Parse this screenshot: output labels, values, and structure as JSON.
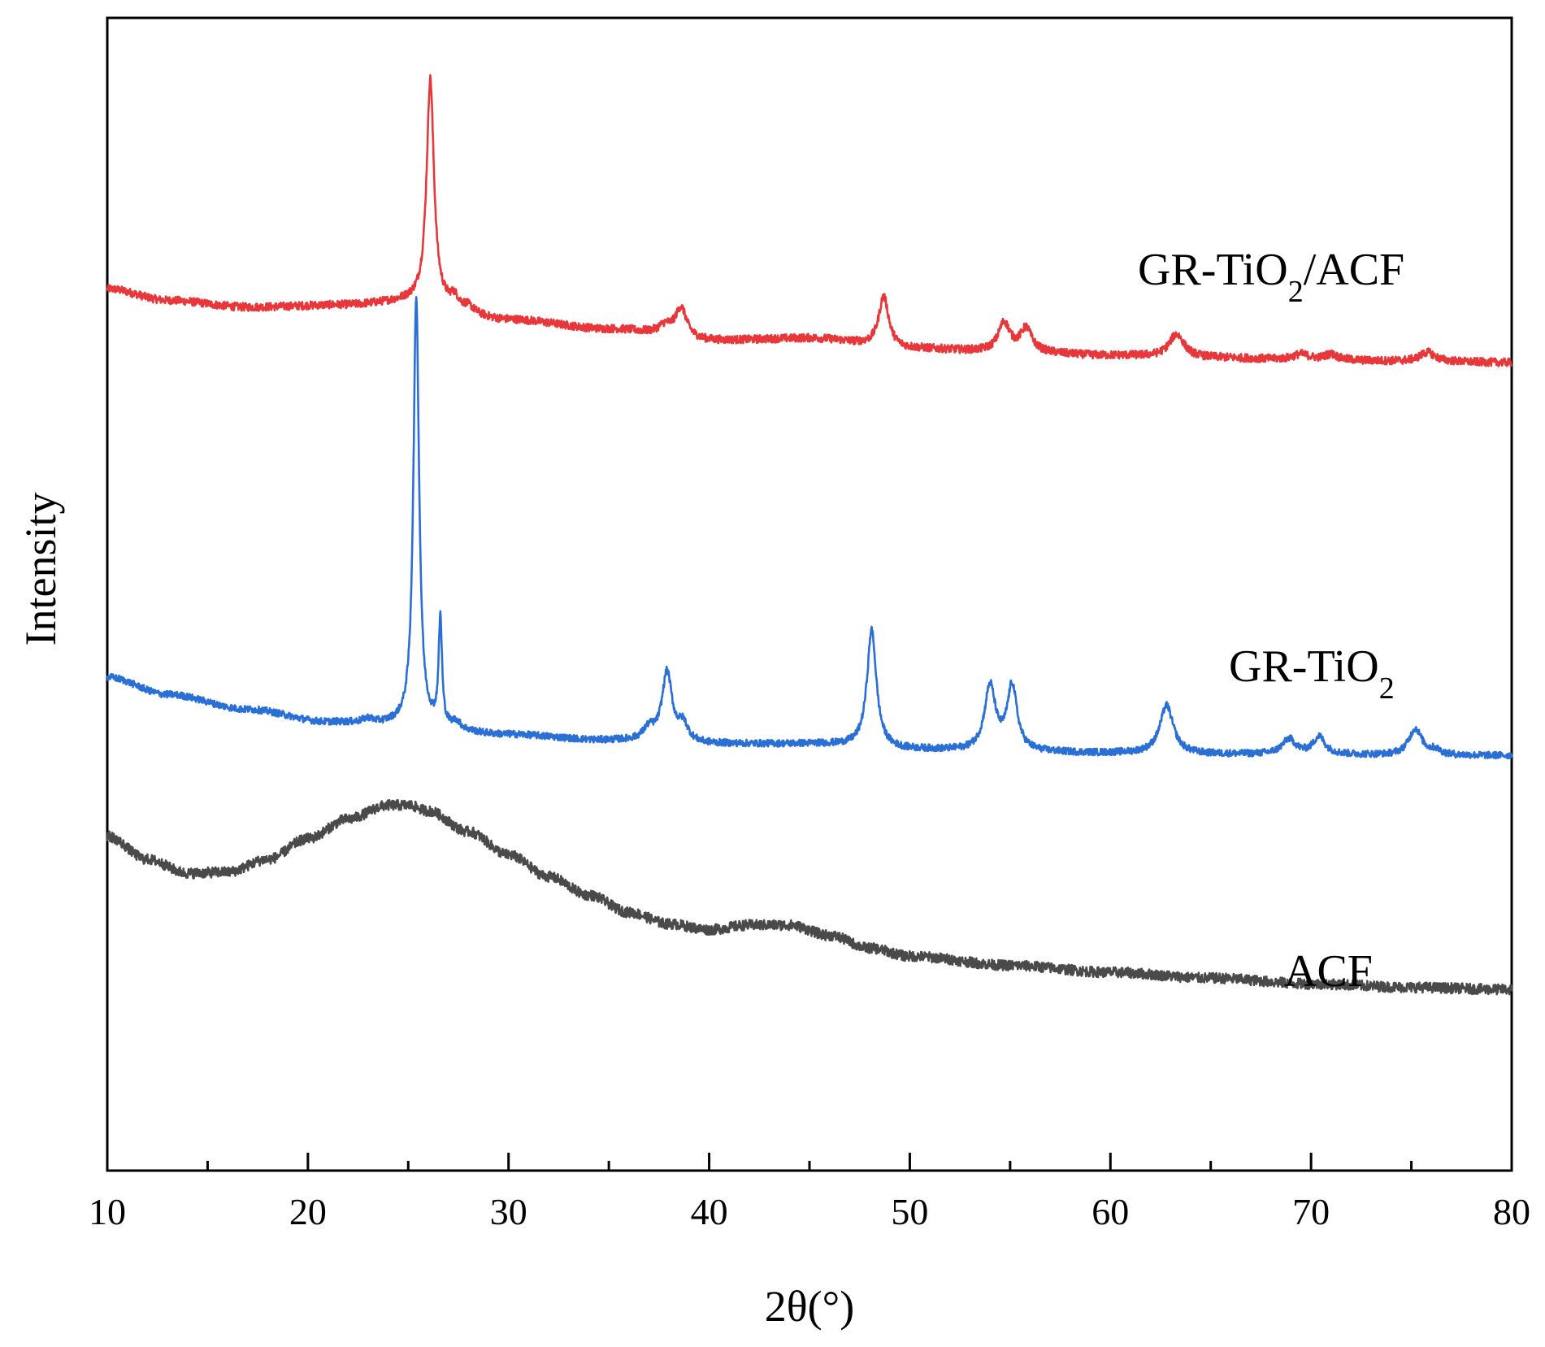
{
  "chart_data": {
    "type": "line",
    "title": "",
    "xlabel": "2θ(°)",
    "ylabel": "Intensity",
    "xlim": [
      10,
      80
    ],
    "ylim": [
      0,
      100
    ],
    "x_ticks": [
      10,
      20,
      30,
      40,
      50,
      60,
      70,
      80
    ],
    "x_tick_labels": [
      "10",
      "20",
      "30",
      "40",
      "50",
      "60",
      "70",
      "80"
    ],
    "grid": false,
    "y_ticks_shown": false,
    "series": [
      {
        "name": "GR-TiO2/ACF",
        "label_main": "GR-TiO",
        "label_sub": "2",
        "label_tail": "/ACF",
        "color": "#e8373a",
        "baseline": [
          [
            10,
            76.5
          ],
          [
            13,
            75.5
          ],
          [
            17,
            74.9
          ],
          [
            22,
            75.1
          ],
          [
            25,
            75.4
          ],
          [
            30,
            73.8
          ],
          [
            35,
            73.0
          ],
          [
            40,
            72.0
          ],
          [
            45,
            72.2
          ],
          [
            50,
            71.3
          ],
          [
            55,
            71.0
          ],
          [
            60,
            70.7
          ],
          [
            65,
            70.5
          ],
          [
            70,
            70.3
          ],
          [
            75,
            70.2
          ],
          [
            80,
            70.1
          ]
        ],
        "peaks": [
          {
            "pos": 26.1,
            "height": 19.5,
            "width": 0.22
          },
          {
            "pos": 27.3,
            "height": 0.9,
            "width": 0.25
          },
          {
            "pos": 28.0,
            "height": 0.5,
            "width": 0.35
          },
          {
            "pos": 37.8,
            "height": 0.8,
            "width": 0.4
          },
          {
            "pos": 38.6,
            "height": 2.6,
            "width": 0.35
          },
          {
            "pos": 48.7,
            "height": 4.4,
            "width": 0.3
          },
          {
            "pos": 54.7,
            "height": 2.5,
            "width": 0.35
          },
          {
            "pos": 55.8,
            "height": 2.0,
            "width": 0.35
          },
          {
            "pos": 63.3,
            "height": 2.0,
            "width": 0.45
          },
          {
            "pos": 69.5,
            "height": 0.5,
            "width": 0.5
          },
          {
            "pos": 71.0,
            "height": 0.5,
            "width": 0.4
          },
          {
            "pos": 75.8,
            "height": 0.8,
            "width": 0.45
          }
        ],
        "noise": 0.35
      },
      {
        "name": "GR-TiO2",
        "label_main": "GR-TiO",
        "label_sub": "2",
        "label_tail": "",
        "color": "#2a6fd6",
        "baseline": [
          [
            10,
            42.8
          ],
          [
            13,
            41.3
          ],
          [
            17,
            40.0
          ],
          [
            21,
            38.9
          ],
          [
            24,
            38.7
          ],
          [
            30,
            37.8
          ],
          [
            35,
            37.3
          ],
          [
            40,
            37.0
          ],
          [
            45,
            37.0
          ],
          [
            50,
            36.5
          ],
          [
            55,
            36.3
          ],
          [
            60,
            36.2
          ],
          [
            65,
            36.1
          ],
          [
            70,
            36.1
          ],
          [
            75,
            36.0
          ],
          [
            80,
            36.0
          ]
        ],
        "peaks": [
          {
            "pos": 23.0,
            "height": 0.4,
            "width": 0.3
          },
          {
            "pos": 25.4,
            "height": 37.3,
            "width": 0.17
          },
          {
            "pos": 26.6,
            "height": 9.2,
            "width": 0.1
          },
          {
            "pos": 27.4,
            "height": 0.6,
            "width": 0.25
          },
          {
            "pos": 37.0,
            "height": 1.0,
            "width": 0.35
          },
          {
            "pos": 37.9,
            "height": 6.0,
            "width": 0.3
          },
          {
            "pos": 38.7,
            "height": 1.5,
            "width": 0.3
          },
          {
            "pos": 48.1,
            "height": 10.2,
            "width": 0.28
          },
          {
            "pos": 54.0,
            "height": 5.6,
            "width": 0.33
          },
          {
            "pos": 55.1,
            "height": 5.6,
            "width": 0.3
          },
          {
            "pos": 62.8,
            "height": 4.2,
            "width": 0.4
          },
          {
            "pos": 68.9,
            "height": 1.3,
            "width": 0.4
          },
          {
            "pos": 70.4,
            "height": 1.5,
            "width": 0.35
          },
          {
            "pos": 75.2,
            "height": 2.3,
            "width": 0.4
          },
          {
            "pos": 76.2,
            "height": 0.4,
            "width": 0.3
          }
        ],
        "noise": 0.3
      },
      {
        "name": "ACF",
        "label_main": "ACF",
        "label_sub": "",
        "label_tail": "",
        "color": "#4a4a4a",
        "baseline": [
          [
            10,
            29.0
          ],
          [
            12,
            27.0
          ],
          [
            14,
            25.8
          ],
          [
            16,
            25.9
          ],
          [
            18,
            27.0
          ],
          [
            20,
            28.8
          ],
          [
            22,
            30.5
          ],
          [
            24,
            31.7
          ],
          [
            25,
            31.7
          ],
          [
            26,
            31.2
          ],
          [
            28,
            29.4
          ],
          [
            30,
            27.4
          ],
          [
            32,
            25.5
          ],
          [
            34,
            23.9
          ],
          [
            36,
            22.4
          ],
          [
            38,
            21.4
          ],
          [
            40,
            20.9
          ],
          [
            42,
            21.3
          ],
          [
            44,
            21.3
          ],
          [
            46,
            20.4
          ],
          [
            48,
            19.3
          ],
          [
            50,
            18.6
          ],
          [
            55,
            17.8
          ],
          [
            60,
            17.2
          ],
          [
            65,
            16.7
          ],
          [
            70,
            16.2
          ],
          [
            75,
            15.9
          ],
          [
            80,
            15.7
          ]
        ],
        "peaks": [],
        "noise": 0.45
      }
    ]
  }
}
